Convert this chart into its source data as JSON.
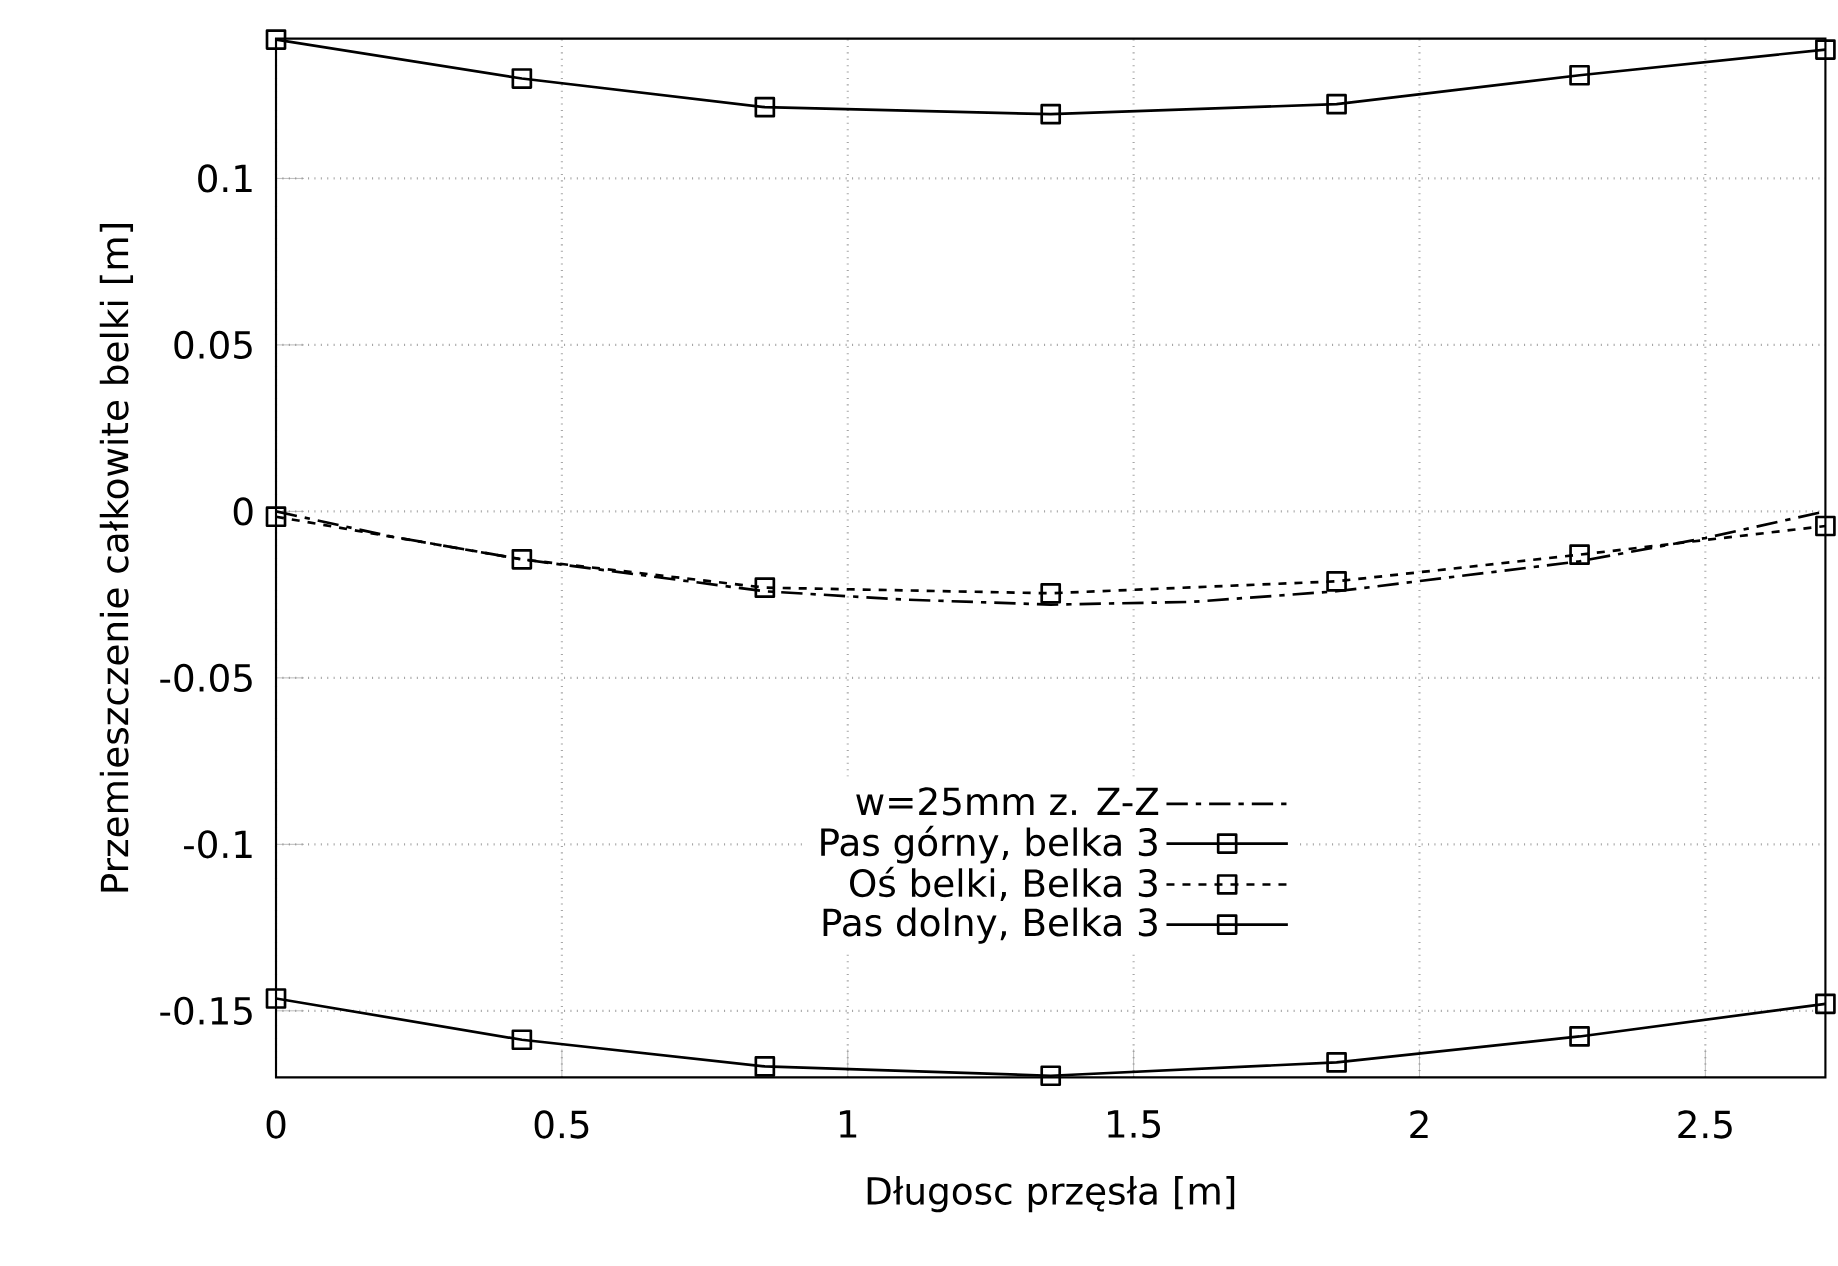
{
  "chart_data": {
    "type": "line",
    "xlabel": "Długosc przęsła [m]",
    "ylabel": "Przemieszczenie całkowite belki [m]",
    "xlim": [
      0,
      2.71
    ],
    "ylim": [
      -0.17,
      0.142
    ],
    "xticks": [
      0,
      0.5,
      1,
      1.5,
      2,
      2.5
    ],
    "yticks": [
      -0.15,
      -0.1,
      -0.05,
      0,
      0.05,
      0.1
    ],
    "grid": true,
    "legend": "bottom",
    "series": [
      {
        "name": "w=25mm z. Z-Z",
        "color": "#000000",
        "marker": "none",
        "line_style": "dashdot",
        "x": [
          0,
          0.2,
          0.43,
          0.855,
          1.1,
          1.355,
          1.6,
          1.855,
          2.28,
          2.5,
          2.71
        ],
        "values": [
          0,
          -0.0075,
          -0.0144,
          -0.024,
          -0.0265,
          -0.028,
          -0.0272,
          -0.024,
          -0.015,
          -0.008,
          0
        ]
      },
      {
        "name": "Pas górny, belka 3",
        "color": "#000000",
        "marker": "square",
        "line_style": "solid",
        "x": [
          0,
          0.43,
          0.855,
          1.355,
          1.855,
          2.28,
          2.71
        ],
        "values": [
          0.1417,
          0.13,
          0.1214,
          0.1193,
          0.1223,
          0.131,
          0.1387
        ]
      },
      {
        "name": "Oś belki, Belka 3",
        "color": "#000000",
        "marker": "square",
        "line_style": "dashed",
        "x": [
          0,
          0.43,
          0.855,
          1.355,
          1.855,
          2.28,
          2.71
        ],
        "values": [
          -0.0016,
          -0.0144,
          -0.0229,
          -0.0246,
          -0.021,
          -0.013,
          -0.0044
        ]
      },
      {
        "name": "Pas dolny, Belka 3",
        "color": "#000000",
        "marker": "square",
        "line_style": "solid",
        "x": [
          0,
          0.43,
          0.855,
          1.355,
          1.855,
          2.28,
          2.71
        ],
        "values": [
          -0.1463,
          -0.1587,
          -0.1667,
          -0.1695,
          -0.1655,
          -0.1577,
          -0.1479
        ]
      }
    ]
  }
}
